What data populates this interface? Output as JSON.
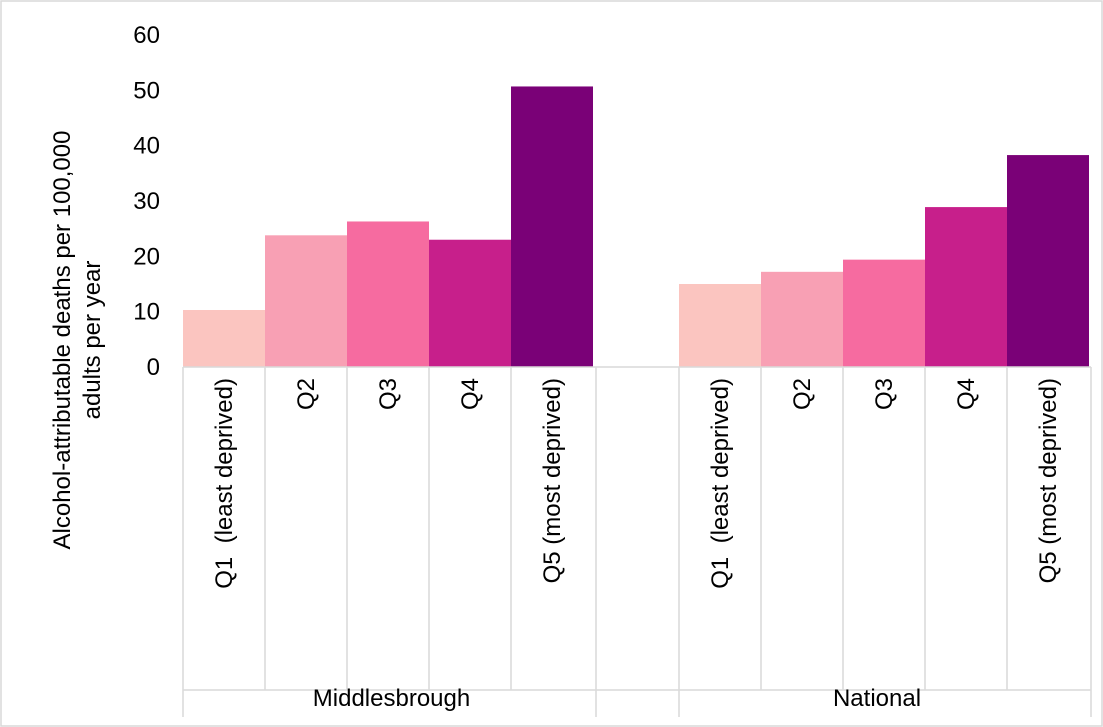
{
  "chart_data": {
    "type": "bar",
    "ylabel_lines": [
      "Alcohol-attributable  deaths per 100,000",
      "adults per year"
    ],
    "ylim": [
      0,
      60
    ],
    "yticks": [
      "0",
      "10",
      "20",
      "30",
      "40",
      "50",
      "60"
    ],
    "grid": false,
    "groups": [
      {
        "name": "Middlesbrough",
        "categories": [
          "Q1  (least deprived)",
          "Q2",
          "Q3",
          "Q4",
          "Q5 (most deprived)"
        ],
        "values": [
          10.3,
          23.8,
          26.3,
          23.0,
          50.7
        ]
      },
      {
        "name": "National",
        "categories": [
          "Q1  (least deprived)",
          "Q2",
          "Q3",
          "Q4",
          "Q5 (most deprived)"
        ],
        "values": [
          15.0,
          17.2,
          19.4,
          28.9,
          38.3
        ]
      }
    ],
    "colors": [
      "#fbc5c0",
      "#f8a0b4",
      "#f66ba0",
      "#c71f8b",
      "#7a0177"
    ]
  }
}
